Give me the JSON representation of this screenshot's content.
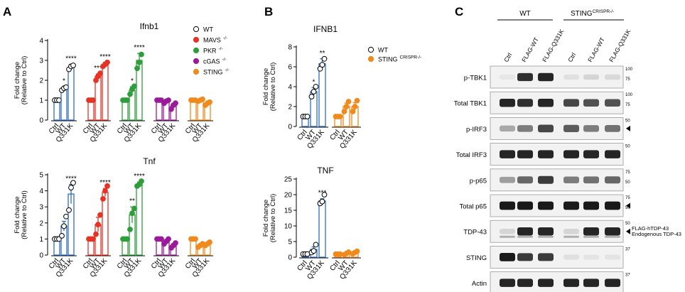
{
  "panels": {
    "A": {
      "letter": "A"
    },
    "B": {
      "letter": "B"
    },
    "C": {
      "letter": "C"
    }
  },
  "colors": {
    "WT": "#ffffff",
    "MAVS": "#e53325",
    "PKR": "#2e9e3b",
    "cGAS": "#9b1a9b",
    "STING": "#f08a1c",
    "blue": "#2f6cc2"
  },
  "legendA": [
    {
      "label": "WT",
      "sup": "",
      "color": "#ffffff"
    },
    {
      "label": "MAVS",
      "sup": "-/-",
      "color": "#e53325"
    },
    {
      "label": "PKR",
      "sup": "-/-",
      "color": "#2e9e3b"
    },
    {
      "label": "cGAS",
      "sup": "-/-",
      "color": "#9b1a9b"
    },
    {
      "label": "STING",
      "sup": "-/-",
      "color": "#f08a1c"
    }
  ],
  "legendB": [
    {
      "label": "WT",
      "sup": "",
      "color": "#ffffff"
    },
    {
      "label": "STING",
      "sup": "CRISPR-/-",
      "color": "#f08a1c"
    }
  ],
  "chart_data": [
    {
      "id": "A-ifnb1",
      "type": "bar",
      "title": "Ifnb1",
      "ylabel": "Fold change",
      "ylabel2": "(Relative to Ctrl)",
      "ylim": [
        0,
        4
      ],
      "yticks": [
        0,
        1,
        2,
        3,
        4
      ],
      "categories": [
        "Ctrl",
        "WT",
        "Q331K"
      ],
      "groups": [
        {
          "name": "WT",
          "color": "#2f6cc2",
          "dot": "#ffffff",
          "values": [
            1.0,
            1.6,
            2.65
          ],
          "errors": [
            0.03,
            0.08,
            0.15
          ],
          "points": [
            [
              1.0,
              1.0,
              1.0
            ],
            [
              1.5,
              1.6,
              1.65
            ],
            [
              2.55,
              2.7,
              2.75
            ]
          ],
          "stars": [
            "",
            "*",
            "****"
          ]
        },
        {
          "name": "MAVS",
          "color": "#e53325",
          "dot": "#e53325",
          "values": [
            1.0,
            2.2,
            2.8
          ],
          "errors": [
            0.03,
            0.12,
            0.1
          ],
          "points": [
            [
              1.0,
              1.0,
              1.0
            ],
            [
              2.0,
              2.2,
              2.35
            ],
            [
              2.7,
              2.8,
              2.9
            ]
          ],
          "stars": [
            "",
            "***",
            "****"
          ]
        },
        {
          "name": "PKR",
          "color": "#2e9e3b",
          "dot": "#2e9e3b",
          "values": [
            1.0,
            1.5,
            3.0
          ],
          "errors": [
            0.03,
            0.18,
            0.35
          ],
          "points": [
            [
              1.0,
              1.0,
              1.0
            ],
            [
              1.3,
              1.55,
              1.7
            ],
            [
              2.6,
              2.9,
              3.3
            ]
          ],
          "stars": [
            "",
            "*",
            "****"
          ]
        },
        {
          "name": "cGAS",
          "color": "#9b1a9b",
          "dot": "#9b1a9b",
          "values": [
            1.0,
            0.95,
            0.7
          ],
          "errors": [
            0.03,
            0.06,
            0.12
          ],
          "points": [
            [
              1.0,
              1.0,
              1.0
            ],
            [
              0.85,
              0.95,
              1.0
            ],
            [
              0.55,
              0.75,
              0.85
            ]
          ],
          "stars": [
            "",
            "",
            ""
          ]
        },
        {
          "name": "STING",
          "color": "#f08a1c",
          "dot": "#f08a1c",
          "values": [
            1.0,
            1.0,
            0.85
          ],
          "errors": [
            0.03,
            0.04,
            0.06
          ],
          "points": [
            [
              1.0,
              1.0,
              1.0
            ],
            [
              0.95,
              1.0,
              1.05
            ],
            [
              0.75,
              0.85,
              0.9
            ]
          ],
          "stars": [
            "",
            "",
            ""
          ]
        }
      ]
    },
    {
      "id": "A-tnf",
      "type": "bar",
      "title": "Tnf",
      "ylabel": "Fold change",
      "ylabel2": "(Relative to Ctrl)",
      "ylim": [
        0,
        5
      ],
      "yticks": [
        0,
        1,
        2,
        3,
        4,
        5
      ],
      "categories": [
        "Ctrl",
        "WT",
        "Q331K"
      ],
      "groups": [
        {
          "name": "WT",
          "color": "#2f6cc2",
          "dot": "#ffffff",
          "values": [
            1.0,
            1.8,
            3.8
          ],
          "errors": [
            0.03,
            0.3,
            0.6
          ],
          "points": [
            [
              1.0,
              1.0,
              1.0
            ],
            [
              1.2,
              1.8,
              2.4
            ],
            [
              2.8,
              4.2,
              4.5
            ]
          ],
          "stars": [
            "",
            "",
            "****"
          ]
        },
        {
          "name": "MAVS",
          "color": "#e53325",
          "dot": "#e53325",
          "values": [
            1.0,
            1.9,
            3.9
          ],
          "errors": [
            0.03,
            0.45,
            0.25
          ],
          "points": [
            [
              1.0,
              1.0,
              1.0
            ],
            [
              1.3,
              1.9,
              2.5
            ],
            [
              3.5,
              4.0,
              4.3
            ]
          ],
          "stars": [
            "",
            "",
            "****"
          ]
        },
        {
          "name": "PKR",
          "color": "#2e9e3b",
          "dot": "#2e9e3b",
          "values": [
            1.0,
            2.5,
            4.4
          ],
          "errors": [
            0.03,
            0.5,
            0.15
          ],
          "points": [
            [
              1.0,
              1.0,
              1.0
            ],
            [
              1.6,
              2.6,
              2.9
            ],
            [
              4.3,
              4.4,
              4.6
            ]
          ],
          "stars": [
            "",
            "**",
            "****"
          ]
        },
        {
          "name": "cGAS",
          "color": "#9b1a9b",
          "dot": "#9b1a9b",
          "values": [
            1.0,
            0.85,
            0.6
          ],
          "errors": [
            0.03,
            0.1,
            0.1
          ],
          "points": [
            [
              1.0,
              1.0,
              1.0
            ],
            [
              0.7,
              0.85,
              1.0
            ],
            [
              0.45,
              0.6,
              0.75
            ]
          ],
          "stars": [
            "",
            "",
            ""
          ]
        },
        {
          "name": "STING",
          "color": "#f08a1c",
          "dot": "#f08a1c",
          "values": [
            1.0,
            0.6,
            0.7
          ],
          "errors": [
            0.03,
            0.1,
            0.08
          ],
          "points": [
            [
              1.0,
              1.0,
              1.0
            ],
            [
              0.5,
              0.6,
              0.7
            ],
            [
              0.6,
              0.7,
              0.8
            ]
          ],
          "stars": [
            "",
            "",
            ""
          ]
        }
      ]
    },
    {
      "id": "B-ifnb1",
      "type": "bar",
      "title": "IFNB1",
      "ylabel": "Fold change",
      "ylabel2": "(Relative to Ctrl)",
      "ylim": [
        0,
        8
      ],
      "yticks": [
        0,
        2,
        4,
        6,
        8
      ],
      "categories": [
        "Ctrl",
        "WT",
        "Q331K"
      ],
      "groups": [
        {
          "name": "WT",
          "color": "#2f6cc2",
          "dot": "#ffffff",
          "values": [
            1.0,
            3.5,
            6.3
          ],
          "errors": [
            0.05,
            0.4,
            0.5
          ],
          "points": [
            [
              1.0,
              1.0,
              1.0
            ],
            [
              3.0,
              3.5,
              4.0
            ],
            [
              5.8,
              6.2,
              6.8
            ]
          ],
          "stars": [
            "",
            "*",
            "**"
          ]
        },
        {
          "name": "STING",
          "color": "#f08a1c",
          "dot": "#f08a1c",
          "values": [
            1.0,
            2.0,
            2.0
          ],
          "errors": [
            0.05,
            0.35,
            0.4
          ],
          "points": [
            [
              1.0,
              1.0,
              1.0
            ],
            [
              1.5,
              2.0,
              2.5
            ],
            [
              1.5,
              2.0,
              2.6
            ]
          ],
          "stars": [
            "",
            "",
            ""
          ]
        }
      ]
    },
    {
      "id": "B-tnf",
      "type": "bar",
      "title": "TNF",
      "ylabel": "Fold change",
      "ylabel2": "(Relative to Ctrl)",
      "ylim": [
        0,
        25
      ],
      "yticks": [
        0,
        5,
        10,
        15,
        20,
        25
      ],
      "categories": [
        "Ctrl",
        "WT",
        "Q331K"
      ],
      "groups": [
        {
          "name": "WT",
          "color": "#2f6cc2",
          "dot": "#ffffff",
          "values": [
            1.0,
            2.5,
            18.0
          ],
          "errors": [
            0.1,
            0.8,
            0.7
          ],
          "points": [
            [
              1.0,
              1.0,
              1.0
            ],
            [
              1.5,
              2.0,
              4.0
            ],
            [
              17.2,
              17.8,
              20.0
            ]
          ],
          "stars": [
            "",
            "",
            "***"
          ]
        },
        {
          "name": "STING",
          "color": "#f08a1c",
          "dot": "#f08a1c",
          "values": [
            1.0,
            1.2,
            1.5
          ],
          "errors": [
            0.1,
            0.3,
            0.3
          ],
          "points": [
            [
              1.0,
              1.0,
              1.0
            ],
            [
              0.8,
              1.2,
              1.6
            ],
            [
              1.1,
              1.5,
              1.9
            ]
          ],
          "stars": [
            "",
            "",
            ""
          ]
        }
      ]
    }
  ],
  "blot": {
    "groups": [
      {
        "label": "WT",
        "sup": ""
      },
      {
        "label": "STING",
        "sup": "CRISPR-/-"
      }
    ],
    "lanes": [
      "Ctrl",
      "FLAG-WT",
      "FLAG-Q331K",
      "Ctrl",
      "FLAG-WT",
      "FLAG-Q331K"
    ],
    "rows": [
      {
        "label": "p-TBK1",
        "marks": [
          "100",
          "75"
        ],
        "arrow": false,
        "bands": [
          0.02,
          0.85,
          0.9,
          0.05,
          0.1,
          0.08
        ]
      },
      {
        "label": "Total TBK1",
        "marks": [
          "100",
          "75"
        ],
        "arrow": false,
        "bands": [
          0.9,
          0.85,
          0.9,
          0.75,
          0.7,
          0.7
        ]
      },
      {
        "label": "p-IRF3",
        "marks": [
          "50"
        ],
        "arrow": true,
        "bands": [
          0.3,
          0.5,
          0.75,
          0.65,
          0.5,
          0.55
        ]
      },
      {
        "label": "Total IRF3",
        "marks": [
          "50"
        ],
        "arrow": false,
        "bands": [
          0.9,
          0.9,
          0.9,
          0.9,
          0.9,
          0.9
        ]
      },
      {
        "label": "p-p65",
        "marks": [
          "75",
          "50"
        ],
        "arrow": false,
        "bands": [
          0.35,
          0.6,
          0.8,
          0.5,
          0.55,
          0.6
        ]
      },
      {
        "label": "Total p65",
        "marks": [
          "75",
          "50"
        ],
        "arrow": true,
        "bands": [
          0.95,
          0.95,
          0.95,
          0.95,
          0.95,
          0.95
        ]
      },
      {
        "label": "TDP-43",
        "marks": [
          "50"
        ],
        "arrow": true,
        "bands": [
          0.1,
          0.9,
          0.9,
          0.1,
          0.9,
          0.9
        ]
      },
      {
        "label": "STING",
        "marks": [
          "37"
        ],
        "arrow": false,
        "bands": [
          0.95,
          0.8,
          0.8,
          0.05,
          0.03,
          0.03
        ]
      },
      {
        "label": "Actin",
        "marks": [
          "37"
        ],
        "arrow": false,
        "bands": [
          0.9,
          0.9,
          0.9,
          0.9,
          0.9,
          0.9
        ]
      }
    ],
    "tdp43_labels": [
      "FLAG-hTDP-43",
      "Endogenous TDP-43"
    ]
  }
}
